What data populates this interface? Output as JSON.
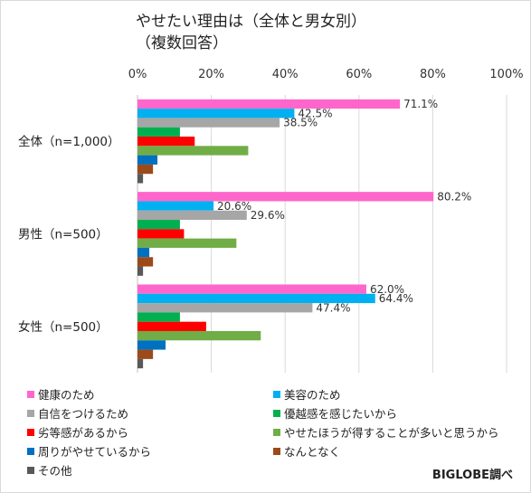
{
  "chart_data": {
    "type": "bar",
    "orientation": "horizontal",
    "title": "やせたい理由は（全体と男女別）\n（複数回答）",
    "xlim": [
      0,
      100
    ],
    "x_ticks": [
      "0%",
      "20%",
      "40%",
      "60%",
      "80%",
      "100%"
    ],
    "grid": true,
    "legend_position": "bottom",
    "categories": [
      "全体（n=1,000）",
      "男性（n=500）",
      "女性（n=500）"
    ],
    "series": [
      {
        "name": "健康のため",
        "color": "#ff66cc",
        "values": [
          71.1,
          80.2,
          62.0
        ],
        "labels": [
          "71.1%",
          "80.2%",
          "62.0%"
        ]
      },
      {
        "name": "美容のため",
        "color": "#00b0f0",
        "values": [
          42.5,
          20.6,
          64.4
        ],
        "labels": [
          "42.5%",
          "20.6%",
          "64.4%"
        ]
      },
      {
        "name": "自信をつけるため",
        "color": "#a6a6a6",
        "values": [
          38.5,
          29.6,
          47.4
        ],
        "labels": [
          "38.5%",
          "29.6%",
          "47.4%"
        ]
      },
      {
        "name": "優越感を感じたいから",
        "color": "#00b050",
        "values": [
          11.5,
          11.5,
          11.5
        ],
        "labels": [
          "",
          "",
          ""
        ]
      },
      {
        "name": "劣等感があるから",
        "color": "#ff0000",
        "values": [
          15.5,
          12.6,
          18.6
        ],
        "labels": [
          "",
          "",
          ""
        ]
      },
      {
        "name": "やせたほうが得することが多いと思うから",
        "color": "#70ad47",
        "values": [
          30.0,
          26.8,
          33.4
        ],
        "labels": [
          "",
          "",
          ""
        ]
      },
      {
        "name": "周りがやせているから",
        "color": "#0070c0",
        "values": [
          5.4,
          3.2,
          7.6
        ],
        "labels": [
          "",
          "",
          ""
        ]
      },
      {
        "name": "なんとなく",
        "color": "#9c4a1a",
        "values": [
          4.2,
          4.2,
          4.2
        ],
        "labels": [
          "",
          "",
          ""
        ]
      },
      {
        "name": "その他",
        "color": "#595959",
        "values": [
          1.5,
          1.5,
          1.5
        ],
        "labels": [
          "",
          "",
          ""
        ]
      }
    ]
  },
  "source": "BIGLOBE調べ"
}
